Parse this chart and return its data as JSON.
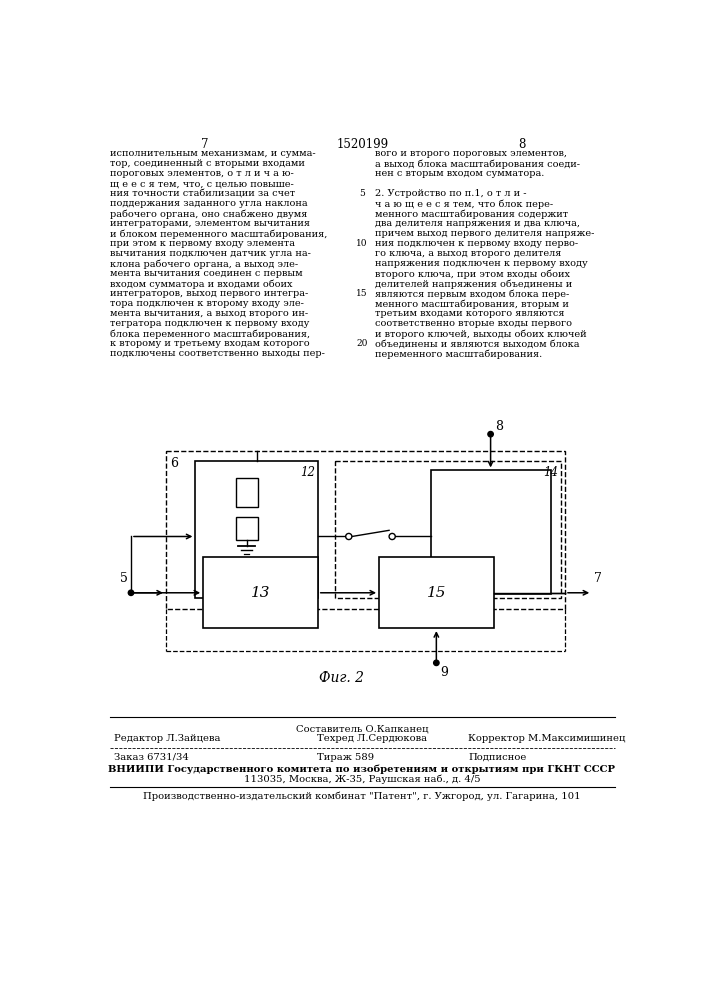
{
  "page_number_left": "7",
  "patent_number": "1520199",
  "page_number_right": "8",
  "left_col_lines": [
    "исполнительным механизмам, и сумма-",
    "тор, соединенный с вторыми входами",
    "пороговых элементов, о т л и ч а ю-",
    "щ е е с я тем, что, с целью повыше-",
    "ния точности стабилизации за счет",
    "поддержания заданного угла наклона",
    "рабочего органа, оно снабжено двумя",
    "интеграторами, элементом вычитания",
    "и блоком переменного масштабирования,",
    "при этом к первому входу элемента",
    "вычитания подключен датчик угла на-",
    "клона рабочего органа, а выход эле-",
    "мента вычитания соединен с первым",
    "входом сумматора и входами обоих",
    "интеграторов, выход первого интегра-",
    "тора подключен к второму входу эле-",
    "мента вычитания, а выход второго ин-",
    "тегратора подключен к первому входу",
    "блока переменного масштабирования,",
    "к второму и третьему входам которого",
    "подключены соответственно выходы пер-"
  ],
  "right_col_lines": [
    "вого и второго пороговых элементов,",
    "а выход блока масштабирования соеди-",
    "нен с вторым входом сумматора.",
    "",
    "2. Устройство по п.1, о т л и -",
    "ч а ю щ е е с я тем, что блок пере-",
    "менного масштабирования содержит",
    "два делителя напряжения и два ключа,",
    "причем выход первого делителя напряже-",
    "ния подключен к первому входу перво-",
    "го ключа, а выход второго делителя",
    "напряжения подключен к первому входу",
    "второго ключа, при этом входы обоих",
    "делителей напряжения объединены и",
    "являются первым входом блока пере-",
    "менного масштабирования, вторым и",
    "третьим входами которого являются",
    "соответственно вторые входы первого",
    "и второго ключей, выходы обоих ключей",
    "объединены и являются выходом блока",
    "переменного масштабирования."
  ],
  "line_nums": [
    {
      "text": "5",
      "line_idx": 4
    },
    {
      "text": "10",
      "line_idx": 9
    },
    {
      "text": "15",
      "line_idx": 14
    },
    {
      "text": "20",
      "line_idx": 19
    }
  ],
  "fig_caption": "Фиг. 2",
  "footer_editor": "Редактор Л.Зайцева",
  "footer_comp_label": "Составитель О.Капканец",
  "footer_tech": "Техред Л.Сердюкова",
  "footer_corr": "Корректор М.Максимишинец",
  "footer_zakaz": "Заказ 6731/34",
  "footer_tirazh": "Тираж 589",
  "footer_podp": "Подписное",
  "footer_vniiipi": "ВНИИПИ Государственного комитета по изобретениям и открытиям при ГКНТ СССР",
  "footer_addr": "113035, Москва, Ж-35, Раушская наб., д. 4/5",
  "footer_plant": "Производственно-издательский комбинат \"Патент\", г. Ужгород, ул. Гагарина, 101"
}
